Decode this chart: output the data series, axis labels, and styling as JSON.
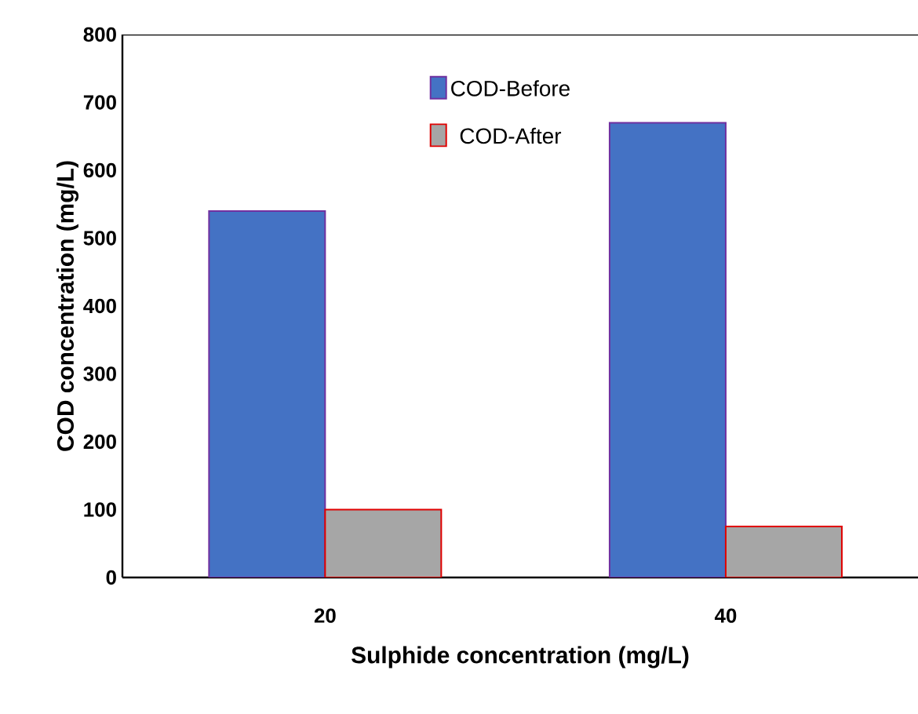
{
  "chart_data": {
    "type": "bar",
    "xlabel": "Sulphide concentration (mg/L)",
    "ylabel": "COD concentration (mg/L)",
    "categories": [
      "20",
      "40"
    ],
    "series": [
      {
        "name": "COD-Before",
        "color": "#4472c4",
        "values": [
          540,
          670
        ]
      },
      {
        "name": "COD-After",
        "color": "#a6a6a6",
        "values": [
          100,
          75
        ]
      }
    ],
    "ylim": [
      0,
      800
    ],
    "yticks": [
      0,
      100,
      200,
      300,
      400,
      500,
      600,
      700,
      800
    ],
    "grid": false,
    "legend": "top"
  }
}
